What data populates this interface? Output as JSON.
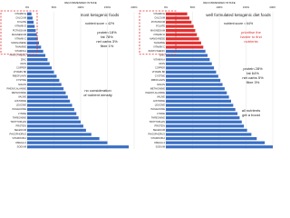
{
  "chart_data": [
    {
      "type": "barh",
      "axis_title": "RECOMMENDED INTAKE",
      "title": "most ketogenic foods",
      "subtitle": "nutrient score = 42%",
      "categories": [
        "VITAMIN E",
        "CALCIUM",
        "FOLATE",
        "VITAMIN D",
        "POTASSIUM",
        "MAGNESIUM",
        "VITAMIN C",
        "MANGANESE",
        "THIAMINE",
        "VITAMIN A",
        "PANTOTHENIC",
        "ZINC",
        "IRON",
        "COPPER",
        "VITAMIN B6",
        "RIBOFLAVIN",
        "CYSTINE",
        "NIACIN",
        "PHENYLALANINE",
        "METHIONINE",
        "VALINE",
        "HISTIDINE",
        "LEUCINE",
        "ISOLEUCINE",
        "LYSINE",
        "THREONINE",
        "TRYPTOPHAN",
        "PROTEIN",
        "SELENIUM",
        "PHOSPHORUS",
        "VITAMIN B12",
        "OMEGA-3",
        "SODIUM"
      ],
      "values": [
        8,
        10,
        12,
        14,
        16,
        18,
        20,
        22,
        26,
        30,
        34,
        38,
        42,
        46,
        50,
        55,
        60,
        64,
        68,
        72,
        76,
        80,
        84,
        88,
        92,
        96,
        100,
        105,
        110,
        120,
        135,
        150,
        190
      ],
      "color": "#3a6fc4",
      "xlim": [
        0,
        200
      ],
      "xticks": [
        {
          "value": 0,
          "label": "0%"
        },
        {
          "value": 50,
          "label": "50%"
        },
        {
          "value": 100,
          "label": "100%"
        },
        {
          "value": 150,
          "label": "150%"
        },
        {
          "value": 200,
          "label": "200%"
        }
      ],
      "grid": true,
      "annotations": [
        "protein 18%",
        "fat 78%",
        "net carbs 3%",
        "fibre 1%",
        "no consideration",
        "of nutrient density"
      ]
    },
    {
      "type": "barh",
      "axis_title": "RECOMMENDED INTAKE",
      "title": "well formulated ketogenic diet foods",
      "subtitle": "nutrient score = 64%",
      "categories": [
        "VITAMIN E",
        "CALCIUM",
        "POTASSIUM",
        "FOLATE",
        "MAGNESIUM",
        "VITAMIN D",
        "MANGANESE",
        "THIAMINE",
        "VITAMIN C",
        "PANTOTHENIC",
        "ZINC",
        "VITAMIN A",
        "IRON",
        "COPPER",
        "VITAMIN B6",
        "CYSTINE",
        "RIBOFLAVIN",
        "NIACIN",
        "METHIONINE",
        "PHENYLALANINE",
        "VALINE",
        "HISTIDINE",
        "LEUCINE",
        "ISOLEUCINE",
        "LYSINE",
        "THREONINE",
        "TRYPTOPHAN",
        "PROTEIN",
        "SELENIUM",
        "PHOSPHORUS",
        "VITAMIN B12",
        "OMEGA-3",
        "SODIUM"
      ],
      "values": [
        40,
        44,
        48,
        52,
        55,
        58,
        62,
        66,
        70,
        74,
        78,
        82,
        86,
        90,
        94,
        98,
        102,
        106,
        110,
        114,
        118,
        122,
        126,
        130,
        134,
        138,
        142,
        146,
        152,
        160,
        170,
        185,
        200
      ],
      "color": "#3a6fc4",
      "highlight_color": "#e03030",
      "xlim": [
        0,
        200
      ],
      "xticks": [
        {
          "value": 0,
          "label": "0%"
        },
        {
          "value": 50,
          "label": "50%"
        },
        {
          "value": 100,
          "label": "100%"
        },
        {
          "value": 150,
          "label": "150%"
        },
        {
          "value": 200,
          "label": "200%"
        }
      ],
      "grid": true,
      "annotations": [
        "protein 28%",
        "fat 64%",
        "net carbs 5%",
        "fibre 3%",
        "prioritise the",
        "harder to find",
        "nutrients",
        "all nutrients",
        "get a boost"
      ]
    }
  ]
}
